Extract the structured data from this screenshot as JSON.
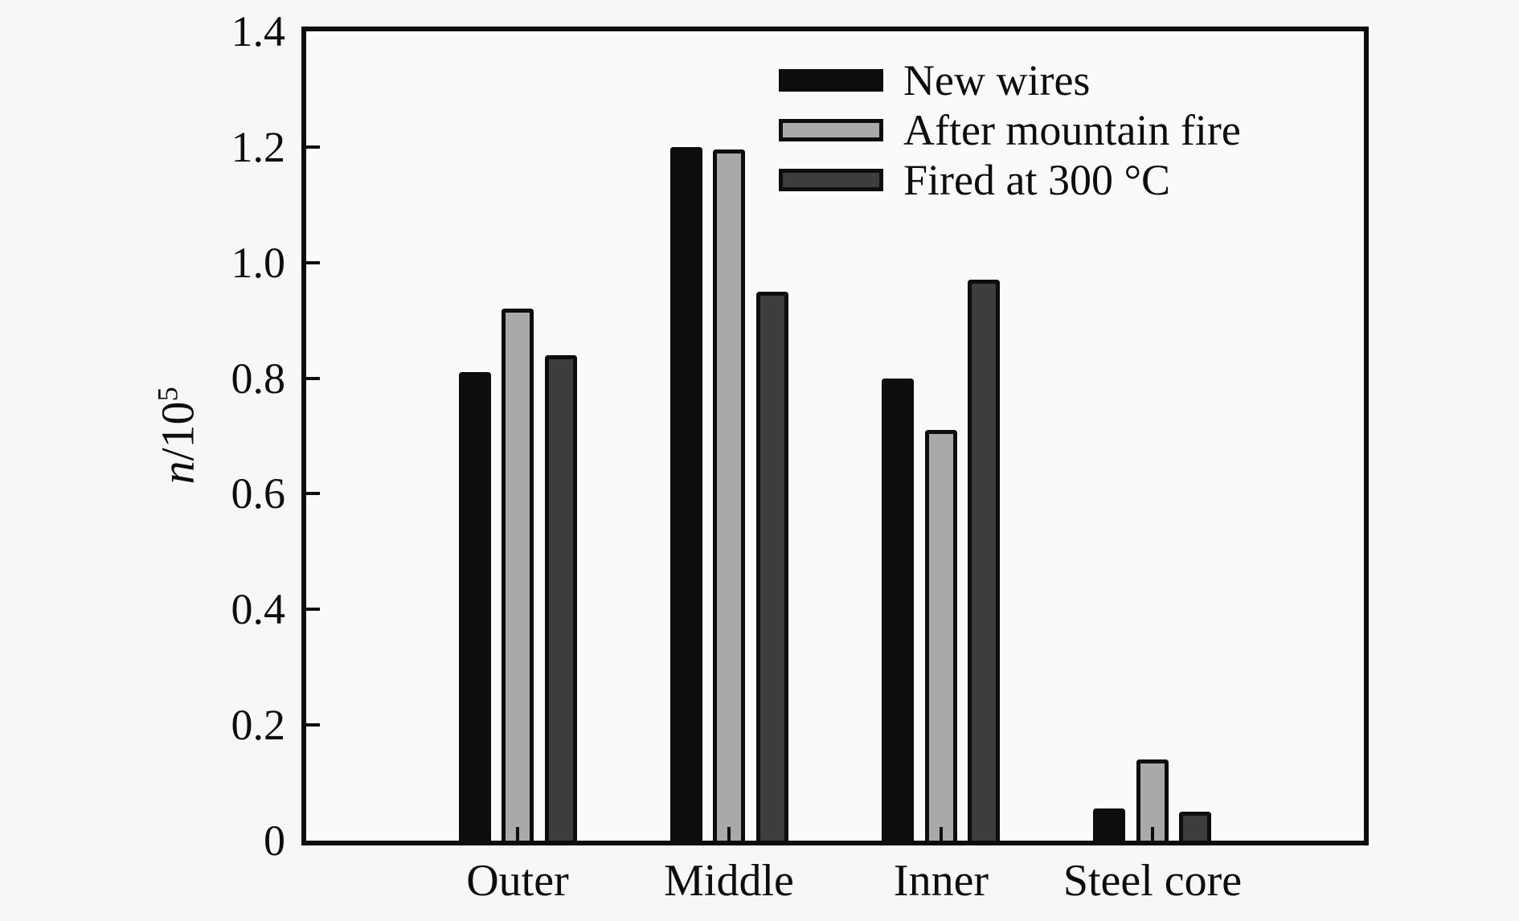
{
  "chart_data": {
    "type": "bar",
    "title": "",
    "categories": [
      "Outer",
      "Middle",
      "Inner",
      "Steel core"
    ],
    "series": [
      {
        "name": "New wires",
        "color": "#0d0d0d",
        "values": [
          0.81,
          1.2,
          0.8,
          0.055
        ]
      },
      {
        "name": "After mountain fire",
        "color": "#a9a9a9",
        "values": [
          0.92,
          1.195,
          0.71,
          0.14
        ]
      },
      {
        "name": "Fired at 300 °C",
        "color": "#3d3d3d",
        "values": [
          0.84,
          0.95,
          0.97,
          0.05
        ]
      }
    ],
    "ylabel": {
      "symbol": "n",
      "denominator": "/10",
      "exponent": "5"
    },
    "ylim": [
      0,
      1.4
    ],
    "yticks": [
      0,
      0.2,
      0.4,
      0.6,
      0.8,
      1.0,
      1.2,
      1.4
    ],
    "ytick_labels": [
      "0",
      "0.2",
      "0.4",
      "0.6",
      "0.8",
      "1.0",
      "1.2",
      "1.4"
    ],
    "xlabel": "",
    "grid": false,
    "legend_position": "upper center inside plot",
    "bar_border_color": "#0d0d0d",
    "background_color": "#f7f7f7"
  }
}
